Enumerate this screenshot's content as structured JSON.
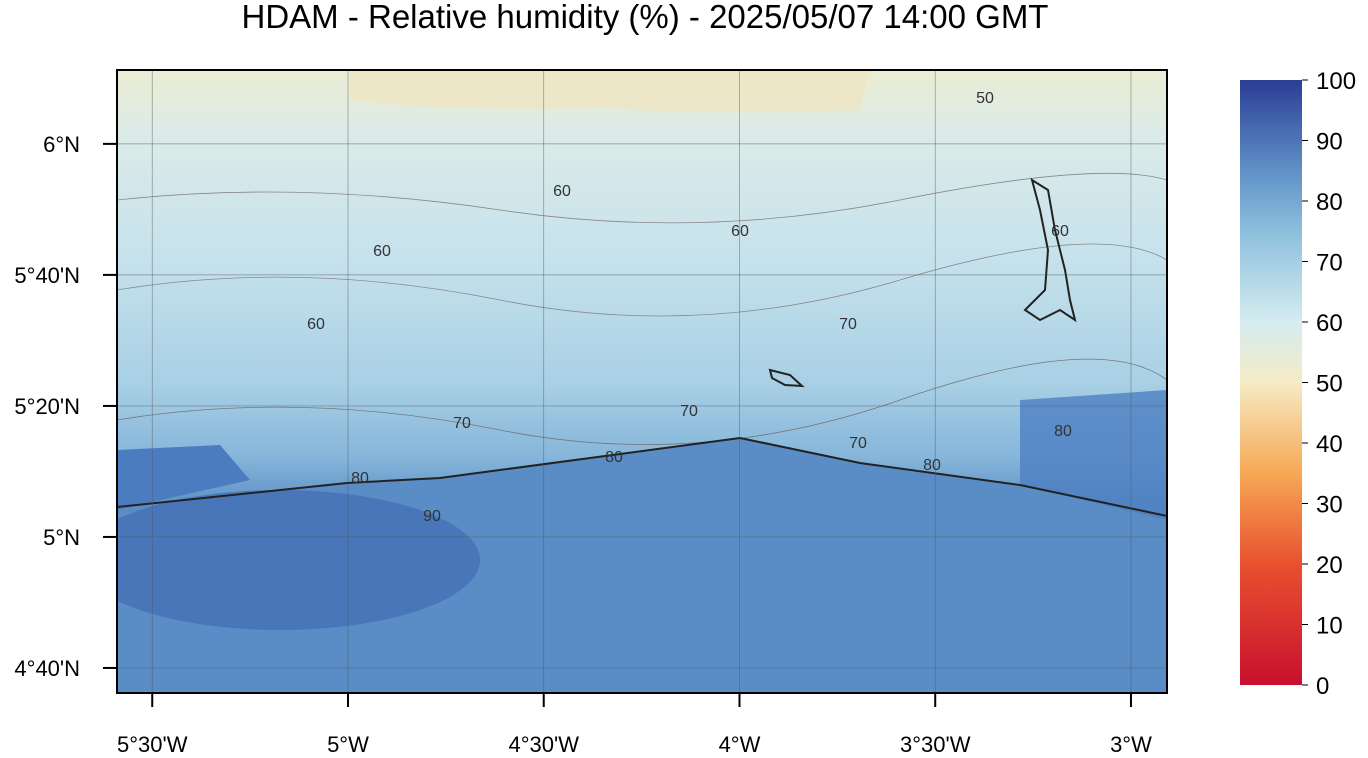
{
  "title": "HDAM - Relative humidity (%)  -  2025/05/07  14:00 GMT",
  "map": {
    "xlim": [
      -5.59,
      -2.908
    ],
    "ylim": [
      4.603,
      6.188
    ],
    "xticks": [
      {
        "value": -5.5,
        "label": "5°30'W"
      },
      {
        "value": -5,
        "label": "5°W"
      },
      {
        "value": -4.5,
        "label": "4°30'W"
      },
      {
        "value": -4,
        "label": "4°W"
      },
      {
        "value": -3.5,
        "label": "3°30'W"
      },
      {
        "value": -3,
        "label": "3°W"
      }
    ],
    "yticks": [
      {
        "value": 4.6667,
        "label": "4°40'N"
      },
      {
        "value": 5,
        "label": "5°N"
      },
      {
        "value": 5.3333,
        "label": "5°20'N"
      },
      {
        "value": 5.6667,
        "label": "5°40'N"
      },
      {
        "value": 6,
        "label": "6°N"
      }
    ],
    "grid": true,
    "contour_labels": [
      50,
      60,
      60,
      60,
      60,
      60,
      70,
      70,
      70,
      70,
      80,
      80,
      80,
      80,
      90
    ]
  },
  "colorbar": {
    "ylim": [
      0,
      100
    ],
    "yticks": [
      0,
      10,
      20,
      30,
      40,
      50,
      60,
      70,
      80,
      90,
      100
    ]
  }
}
